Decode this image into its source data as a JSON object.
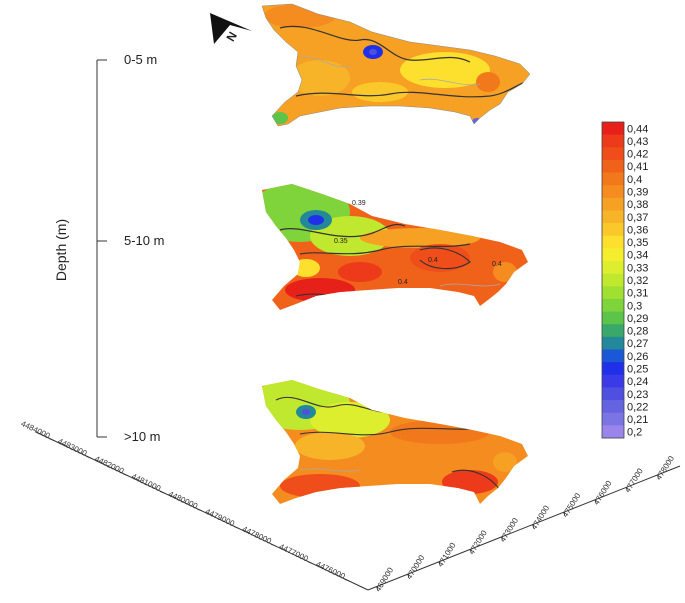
{
  "chart_data": {
    "type": "heatmap",
    "title": "",
    "ylabel": "Depth (m)",
    "layers": [
      {
        "label": "0-5 m",
        "dominant_value": 0.38,
        "min": 0.26,
        "max": 0.41
      },
      {
        "label": "5-10 m",
        "dominant_value": 0.41,
        "min": 0.25,
        "max": 0.43
      },
      {
        "label": ">10 m",
        "dominant_value": 0.39,
        "min": 0.28,
        "max": 0.42
      }
    ],
    "contour_labels": [
      {
        "layer": 1,
        "text": "0.39"
      },
      {
        "layer": 1,
        "text": "0.4"
      },
      {
        "layer": 1,
        "text": "0.35"
      },
      {
        "layer": 1,
        "text": "0.4"
      },
      {
        "layer": 1,
        "text": "0.4"
      }
    ],
    "colorbar": {
      "labels": [
        "0,44",
        "0,43",
        "0,42",
        "0,41",
        "0,4",
        "0,39",
        "0,38",
        "0,37",
        "0,36",
        "0,35",
        "0,34",
        "0,33",
        "0,32",
        "0,31",
        "0,3",
        "0,29",
        "0,28",
        "0,27",
        "0,26",
        "0,25",
        "0,24",
        "0,23",
        "0,22",
        "0,21",
        "0,2"
      ],
      "colors": [
        "#e8201a",
        "#ec3a1a",
        "#ef4e1a",
        "#f0621a",
        "#f2781c",
        "#f48c20",
        "#f6a024",
        "#f8b428",
        "#fbc82c",
        "#fde02e",
        "#f4ee2e",
        "#dcee2e",
        "#c0e82e",
        "#a0e032",
        "#7ed43a",
        "#5cc448",
        "#3aa86a",
        "#22889a",
        "#1a58d8",
        "#2030e8",
        "#3a3ae8",
        "#5050e0",
        "#6464e0",
        "#7a74e4",
        "#9a86ea"
      ]
    },
    "y_axis_ticks": [
      "4484000",
      "4483000",
      "4482000",
      "4481000",
      "4480000",
      "4479000",
      "4478000",
      "4477000",
      "4476000"
    ],
    "x_axis_ticks": [
      "469000",
      "470000",
      "471000",
      "472000",
      "473000",
      "474000",
      "475000",
      "476000",
      "477000",
      "478000"
    ],
    "north_label": "N"
  }
}
